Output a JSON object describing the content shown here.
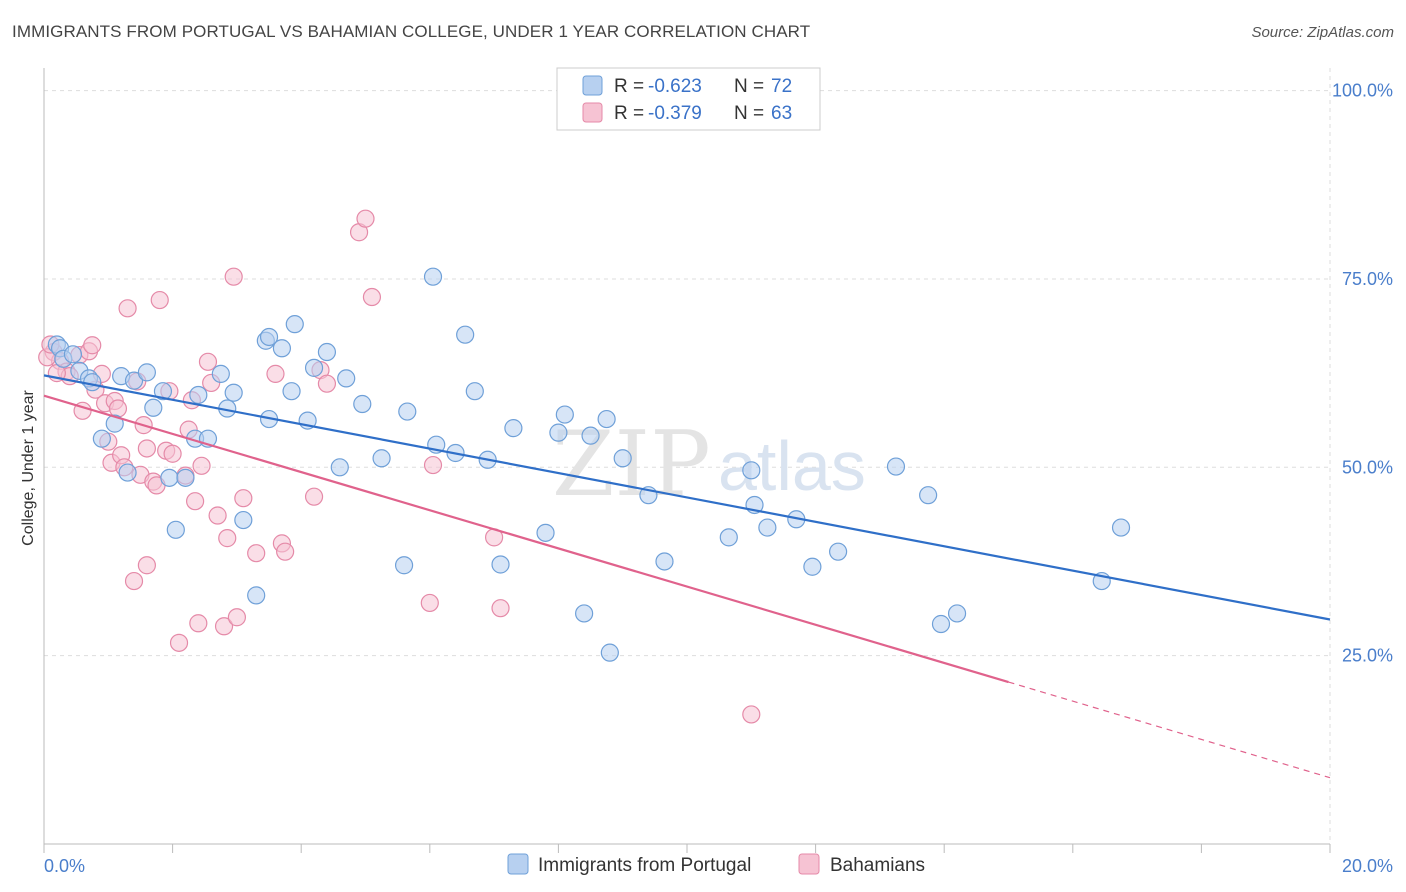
{
  "title": "IMMIGRANTS FROM PORTUGAL VS BAHAMIAN COLLEGE, UNDER 1 YEAR CORRELATION CHART",
  "source": "Source: ZipAtlas.com",
  "watermark": {
    "zip": "ZIP",
    "atlas": "atlas"
  },
  "colors": {
    "blue": "#6fa0d8",
    "blue_fill": "#b7d0f0",
    "blue_line": "#2f6fc8",
    "pink": "#e58aa8",
    "pink_fill": "#f6c3d3",
    "pink_line": "#e0628c",
    "tick": "#4a7ecb",
    "grid": "#dddddd"
  },
  "legend": {
    "rows": [
      {
        "r_label": "R = ",
        "r_value": "-0.623",
        "n_label": "N = ",
        "n_value": "72"
      },
      {
        "r_label": "R = ",
        "r_value": "-0.379",
        "n_label": "N = ",
        "n_value": "63"
      }
    ]
  },
  "chart_data": {
    "type": "scatter",
    "title": "IMMIGRANTS FROM PORTUGAL VS BAHAMIAN COLLEGE, UNDER 1 YEAR CORRELATION CHART",
    "xlabel": "",
    "ylabel": "College, Under 1 year",
    "xlim": [
      0,
      20
    ],
    "ylim": [
      0,
      103
    ],
    "x_tick_labels": [
      "0.0%",
      "20.0%"
    ],
    "y_ticks": [
      25,
      50,
      75,
      100
    ],
    "y_tick_labels": [
      "25.0%",
      "50.0%",
      "75.0%",
      "100.0%"
    ],
    "grid": true,
    "legend_placement": "top-center",
    "series": [
      {
        "name": "Immigrants from Portugal",
        "color": "#6fa0d8",
        "r": -0.623,
        "n": 72,
        "trend": {
          "x": [
            0,
            20
          ],
          "y": [
            62.2,
            29.8
          ],
          "style": "solid"
        },
        "points": [
          [
            0.2,
            66.3
          ],
          [
            0.25,
            65.8
          ],
          [
            0.3,
            64.4
          ],
          [
            0.45,
            65.0
          ],
          [
            0.55,
            62.8
          ],
          [
            0.7,
            61.8
          ],
          [
            0.75,
            61.3
          ],
          [
            0.9,
            53.8
          ],
          [
            1.1,
            55.8
          ],
          [
            1.2,
            62.1
          ],
          [
            1.3,
            49.3
          ],
          [
            1.4,
            61.5
          ],
          [
            1.6,
            62.6
          ],
          [
            1.7,
            57.9
          ],
          [
            1.85,
            60.1
          ],
          [
            1.95,
            48.6
          ],
          [
            2.05,
            41.7
          ],
          [
            2.2,
            48.6
          ],
          [
            2.35,
            53.8
          ],
          [
            2.4,
            59.6
          ],
          [
            2.55,
            53.8
          ],
          [
            2.75,
            62.4
          ],
          [
            2.85,
            57.8
          ],
          [
            2.95,
            59.9
          ],
          [
            3.1,
            43.0
          ],
          [
            3.3,
            33.0
          ],
          [
            3.45,
            66.8
          ],
          [
            3.5,
            67.3
          ],
          [
            3.5,
            56.4
          ],
          [
            3.7,
            65.8
          ],
          [
            3.85,
            60.1
          ],
          [
            3.9,
            69.0
          ],
          [
            4.1,
            56.2
          ],
          [
            4.2,
            63.2
          ],
          [
            4.4,
            65.3
          ],
          [
            4.6,
            50.0
          ],
          [
            4.7,
            61.8
          ],
          [
            4.95,
            58.4
          ],
          [
            5.25,
            51.2
          ],
          [
            5.6,
            37.0
          ],
          [
            5.65,
            57.4
          ],
          [
            6.05,
            75.3
          ],
          [
            6.1,
            53.0
          ],
          [
            6.4,
            51.9
          ],
          [
            6.55,
            67.6
          ],
          [
            6.7,
            60.1
          ],
          [
            6.9,
            51.0
          ],
          [
            7.1,
            37.1
          ],
          [
            7.3,
            55.2
          ],
          [
            7.8,
            41.3
          ],
          [
            8.0,
            54.6
          ],
          [
            8.1,
            57.0
          ],
          [
            8.4,
            30.6
          ],
          [
            8.5,
            54.2
          ],
          [
            8.75,
            56.4
          ],
          [
            8.8,
            25.4
          ],
          [
            9.0,
            51.2
          ],
          [
            9.4,
            46.3
          ],
          [
            9.65,
            37.5
          ],
          [
            10.65,
            40.7
          ],
          [
            11.0,
            49.6
          ],
          [
            11.05,
            45.0
          ],
          [
            11.25,
            42.0
          ],
          [
            11.7,
            43.1
          ],
          [
            11.95,
            36.8
          ],
          [
            12.35,
            38.8
          ],
          [
            13.25,
            50.1
          ],
          [
            13.75,
            46.3
          ],
          [
            13.95,
            29.2
          ],
          [
            14.2,
            30.6
          ],
          [
            16.45,
            34.9
          ],
          [
            16.75,
            42.0
          ]
        ]
      },
      {
        "name": "Bahamians",
        "color": "#e58aa8",
        "r": -0.379,
        "n": 63,
        "trend": {
          "x": [
            0,
            15
          ],
          "y": [
            59.5,
            21.5
          ],
          "style": "solid",
          "extended": {
            "x": [
              15,
              20
            ],
            "y": [
              21.5,
              8.8
            ],
            "style": "dashed"
          }
        },
        "points": [
          [
            0.15,
            65.3
          ],
          [
            0.25,
            64.1
          ],
          [
            0.35,
            62.7
          ],
          [
            0.4,
            62.1
          ],
          [
            0.55,
            64.9
          ],
          [
            0.6,
            57.5
          ],
          [
            0.7,
            65.4
          ],
          [
            0.75,
            66.2
          ],
          [
            0.8,
            60.3
          ],
          [
            0.9,
            62.4
          ],
          [
            0.95,
            58.5
          ],
          [
            1.0,
            53.4
          ],
          [
            1.05,
            50.6
          ],
          [
            1.1,
            58.8
          ],
          [
            1.15,
            57.8
          ],
          [
            1.2,
            51.6
          ],
          [
            1.25,
            50.0
          ],
          [
            1.3,
            71.1
          ],
          [
            1.4,
            34.9
          ],
          [
            1.45,
            61.4
          ],
          [
            1.5,
            49.0
          ],
          [
            1.55,
            55.6
          ],
          [
            1.6,
            52.5
          ],
          [
            1.6,
            37.0
          ],
          [
            1.7,
            48.1
          ],
          [
            1.75,
            47.6
          ],
          [
            1.8,
            72.2
          ],
          [
            1.9,
            52.2
          ],
          [
            1.95,
            60.1
          ],
          [
            2.0,
            51.8
          ],
          [
            2.1,
            26.7
          ],
          [
            2.2,
            48.9
          ],
          [
            2.25,
            55.0
          ],
          [
            2.3,
            58.9
          ],
          [
            2.35,
            45.5
          ],
          [
            2.4,
            29.3
          ],
          [
            2.45,
            50.2
          ],
          [
            2.55,
            64.0
          ],
          [
            2.6,
            61.2
          ],
          [
            2.7,
            43.6
          ],
          [
            2.8,
            28.9
          ],
          [
            2.85,
            40.6
          ],
          [
            2.95,
            75.3
          ],
          [
            3.0,
            30.1
          ],
          [
            3.1,
            45.9
          ],
          [
            3.3,
            38.6
          ],
          [
            3.6,
            62.4
          ],
          [
            3.7,
            39.9
          ],
          [
            3.75,
            38.8
          ],
          [
            4.2,
            46.1
          ],
          [
            4.3,
            62.9
          ],
          [
            4.4,
            61.1
          ],
          [
            4.9,
            81.2
          ],
          [
            5.0,
            83.0
          ],
          [
            5.1,
            72.6
          ],
          [
            6.0,
            32.0
          ],
          [
            6.05,
            50.3
          ],
          [
            7.0,
            40.7
          ],
          [
            7.1,
            31.3
          ],
          [
            11.0,
            17.2
          ],
          [
            0.05,
            64.6
          ],
          [
            0.1,
            66.3
          ],
          [
            0.2,
            62.5
          ]
        ]
      }
    ]
  },
  "bottom_legend": [
    {
      "label": "Immigrants from Portugal"
    },
    {
      "label": "Bahamians"
    }
  ]
}
